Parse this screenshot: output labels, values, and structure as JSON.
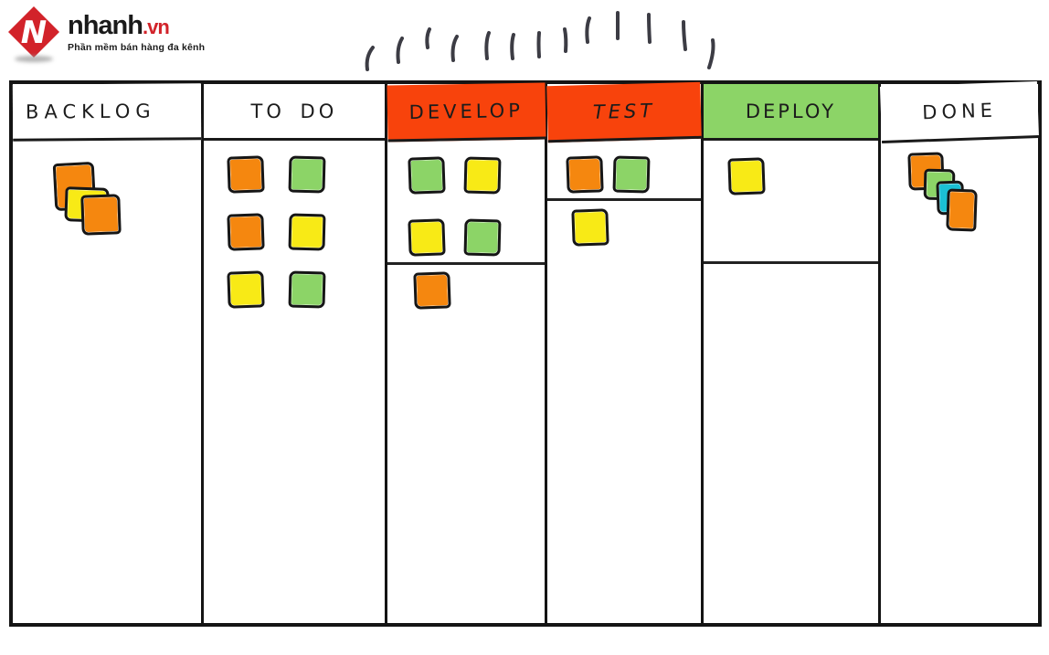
{
  "logo": {
    "brand": "nhanh",
    "tld": ".vn",
    "tagline": "Phần mềm bán hàng đa kênh",
    "brand_color": "#1a1a1a",
    "accent_color": "#d2232a"
  },
  "decoration": {
    "tally_marks_count": 13
  },
  "palette": {
    "orange": "#F5870F",
    "yellow": "#F8EA16",
    "green": "#8CD467",
    "cyan": "#1BBFD4",
    "header_red": "#F8430C",
    "header_green": "#8CD467",
    "board_line": "#141414"
  },
  "board": {
    "columns": [
      {
        "id": "backlog",
        "label": "BACKLOG",
        "header_bg": "#FFFFFF",
        "stack": [
          "orange",
          "yellow",
          "orange"
        ]
      },
      {
        "id": "todo",
        "label": "TO DO",
        "header_bg": "#FFFFFF",
        "notes": [
          "orange",
          "green",
          "orange",
          "yellow",
          "yellow",
          "green"
        ]
      },
      {
        "id": "develop",
        "label": "DEVELOP",
        "header_bg": "#F8430C",
        "sections": [
          [
            "green",
            "yellow",
            "yellow",
            "green"
          ],
          [
            "orange"
          ]
        ]
      },
      {
        "id": "test",
        "label": "TEST",
        "header_bg": "#F8430C",
        "sections": [
          [
            "orange",
            "green"
          ],
          [
            "yellow"
          ]
        ]
      },
      {
        "id": "deploy",
        "label": "DEPLOY",
        "header_bg": "#8CD467",
        "sections": [
          [
            "yellow"
          ],
          []
        ]
      },
      {
        "id": "done",
        "label": "DONE",
        "header_bg": "#FFFFFF",
        "stack": [
          "orange",
          "green",
          "cyan",
          "orange"
        ]
      }
    ]
  }
}
